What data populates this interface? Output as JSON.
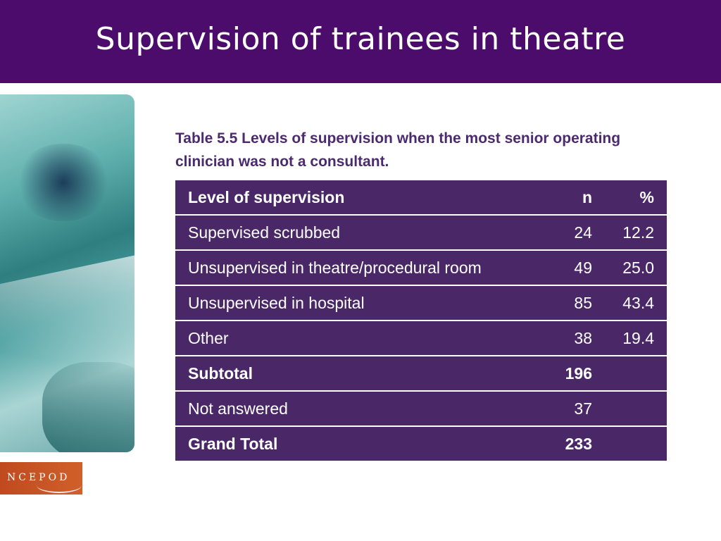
{
  "slide": {
    "title": "Supervision of trainees in theatre"
  },
  "table": {
    "caption": "Table 5.5 Levels of supervision when the most senior operating clinician was not a consultant.",
    "headers": [
      "Level of supervision",
      "n",
      "%"
    ],
    "rows": [
      {
        "label": "Supervised scrubbed",
        "n": "24",
        "pct": "12.2"
      },
      {
        "label": "Unsupervised in theatre/procedural room",
        "n": "49",
        "pct": "25.0"
      },
      {
        "label": "Unsupervised in hospital",
        "n": "85",
        "pct": "43.4"
      },
      {
        "label": "Other",
        "n": "38",
        "pct": "19.4"
      },
      {
        "label": "Subtotal",
        "n": "196",
        "pct": ""
      },
      {
        "label": "Not answered",
        "n": "37",
        "pct": ""
      },
      {
        "label": "Grand Total",
        "n": "233",
        "pct": ""
      }
    ]
  },
  "logo": {
    "text": "NCEPOD"
  },
  "colors": {
    "title_bar": "#4b0c6b",
    "table_bg": "#4a2868",
    "caption": "#4b2a6e",
    "logo": "#c04a1e"
  }
}
